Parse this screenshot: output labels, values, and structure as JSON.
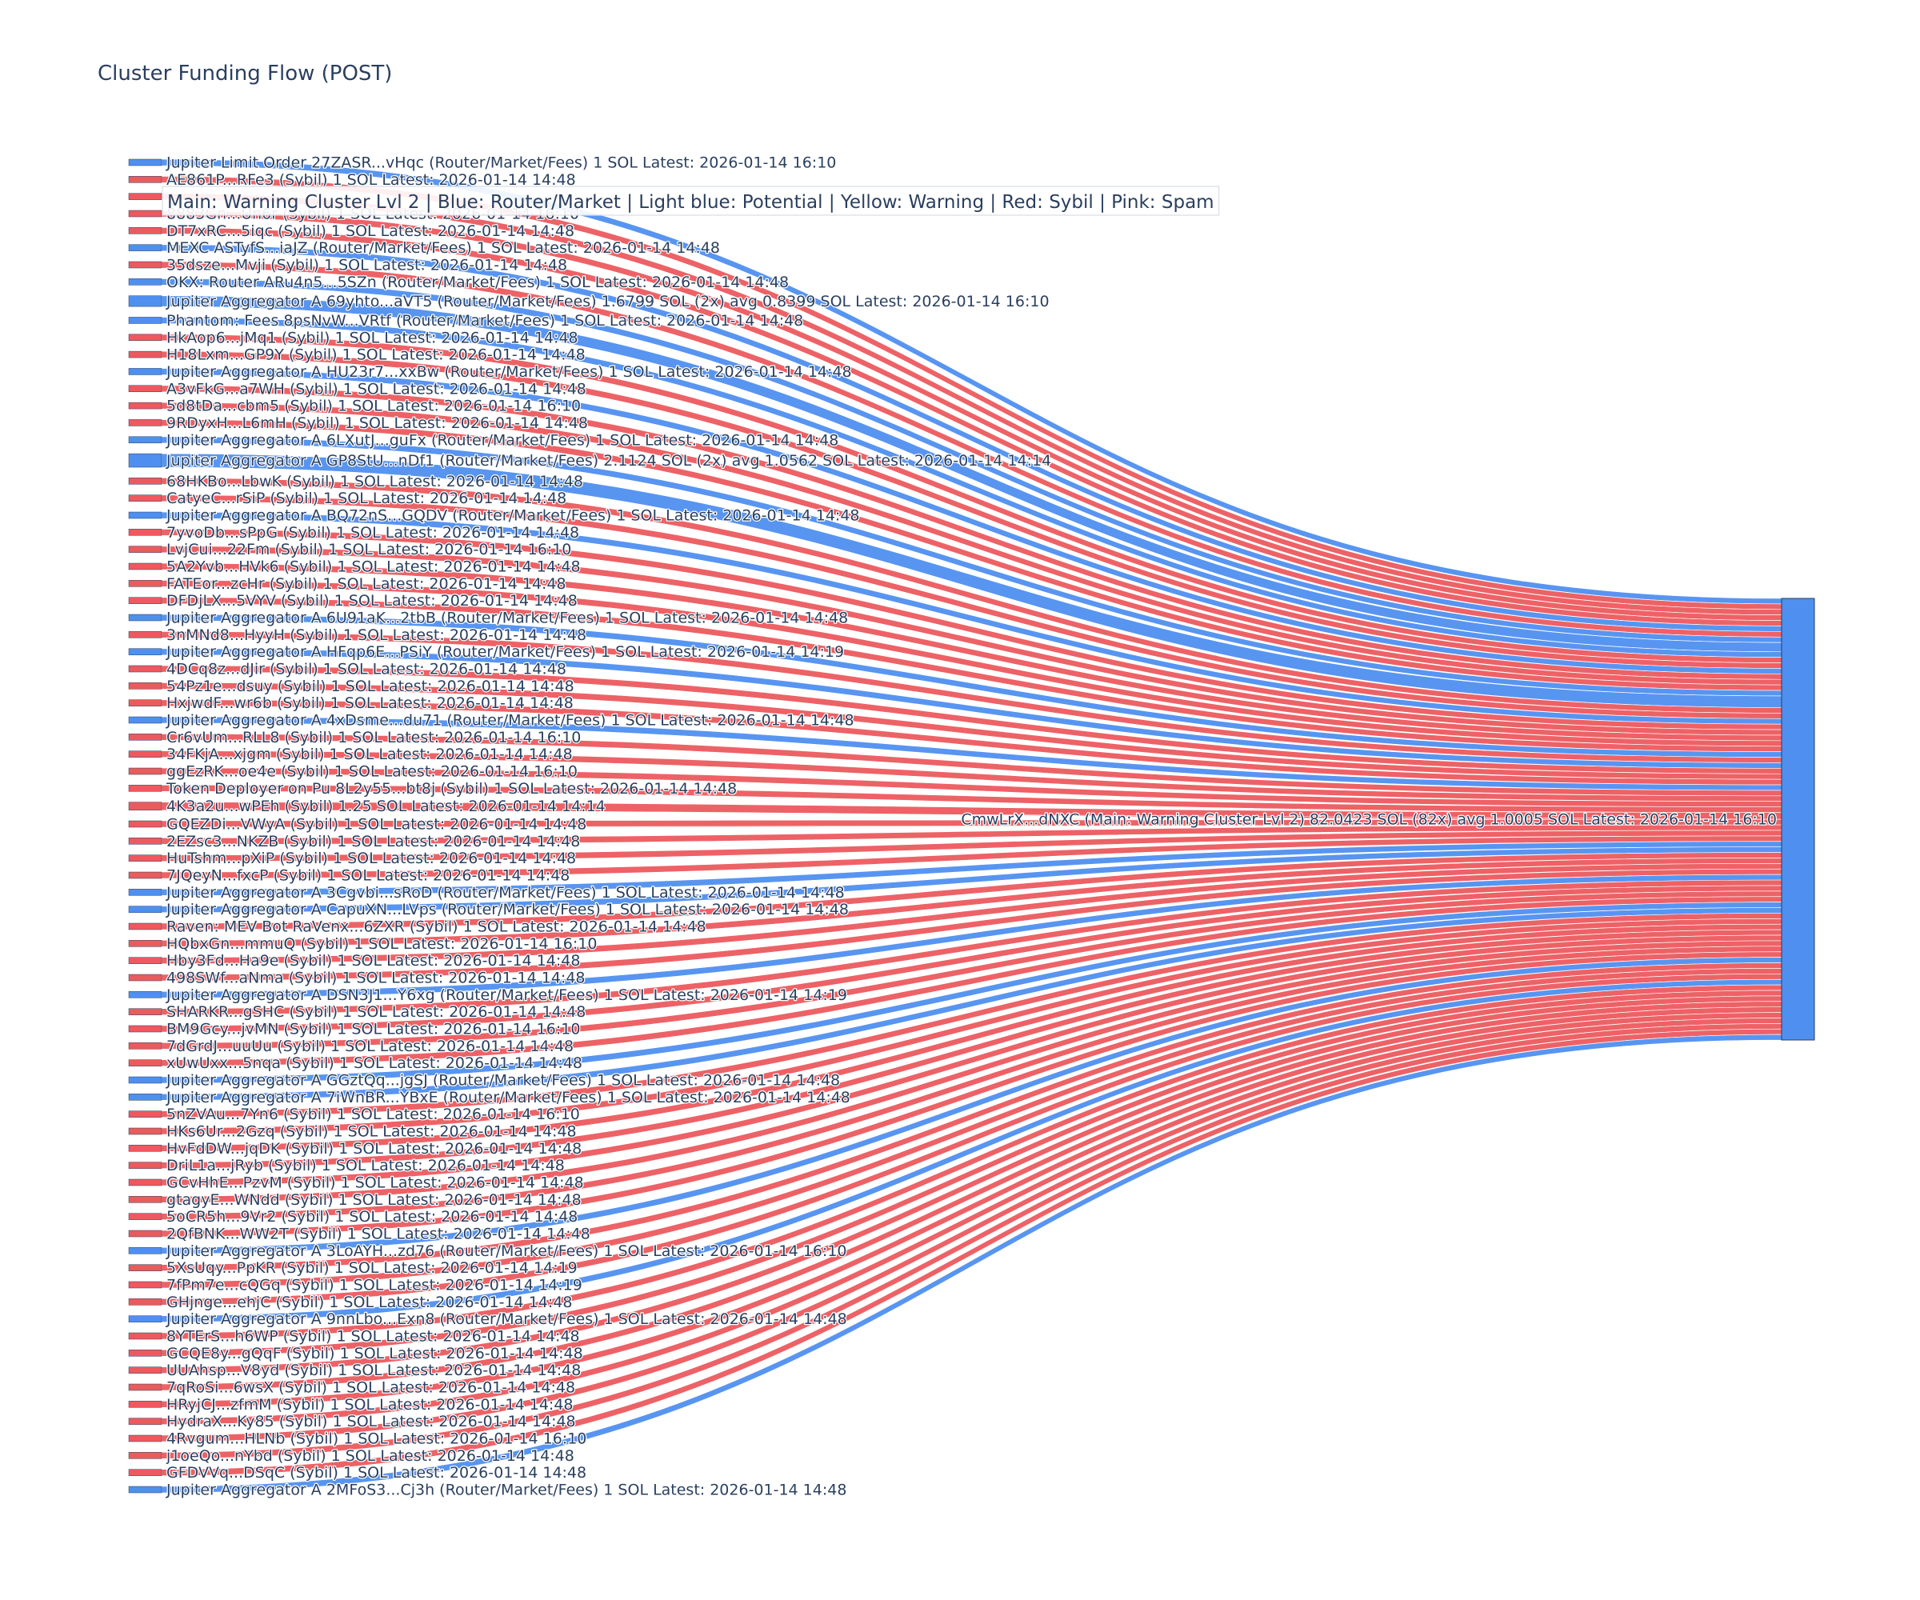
{
  "chart_data": {
    "type": "sankey",
    "title": "Cluster Funding Flow (POST)",
    "legend": "Main: Warning Cluster Lvl 2  |  Blue: Router/Market | Light blue: Potential | Yellow: Warning | Red: Sybil | Pink: Spam",
    "colors": {
      "router": "#4f8ff0",
      "sybil": "#ec5a5e",
      "main": "#4f8ff0",
      "main_border": "#2a3f5f",
      "text": "#2a3f5f"
    },
    "target": {
      "label": "CmwLrX...dNXC (Main: Warning Cluster Lvl 2) 82.0423 SOL (82x) avg 1.0005 SOL Latest: 2026-01-14 16:10",
      "value": 82.0423,
      "category": "main"
    },
    "sources": [
      {
        "label": "Jupiter Limit Order  27ZASR...vHqc (Router/Market/Fees) 1 SOL Latest: 2026-01-14 16:10",
        "value": 1,
        "category": "router"
      },
      {
        "label": "AE861P...RFe3 (Sybil) 1 SOL Latest: 2026-01-14 14:48",
        "value": 1,
        "category": "sybil"
      },
      {
        "label": "",
        "value": 1,
        "category": "sybil"
      },
      {
        "label": "8883Gn...Un6r (Sybil) 1 SOL Latest: 2026-01-14 16:10",
        "value": 1,
        "category": "sybil"
      },
      {
        "label": "DT7xRC...5iqc (Sybil) 1 SOL Latest: 2026-01-14 14:48",
        "value": 1,
        "category": "sybil"
      },
      {
        "label": "MEXC ASTyfS...iaJZ (Router/Market/Fees) 1 SOL Latest: 2026-01-14 14:48",
        "value": 1,
        "category": "router"
      },
      {
        "label": "35dsze...Mvji (Sybil) 1 SOL Latest: 2026-01-14 14:48",
        "value": 1,
        "category": "sybil"
      },
      {
        "label": "OKX: Router ARu4n5...5SZn (Router/Market/Fees) 1 SOL Latest: 2026-01-14 14:48",
        "value": 1,
        "category": "router"
      },
      {
        "label": "Jupiter Aggregator A 69yhto...aVT5 (Router/Market/Fees) 1.6799 SOL (2x) avg 0.8399 SOL Latest: 2026-01-14 16:10",
        "value": 1.6799,
        "category": "router"
      },
      {
        "label": "Phantom: Fees 8psNvW...VRtf (Router/Market/Fees) 1 SOL Latest: 2026-01-14 14:48",
        "value": 1,
        "category": "router"
      },
      {
        "label": "HkAop6...jMq1 (Sybil) 1 SOL Latest: 2026-01-14 14:48",
        "value": 1,
        "category": "sybil"
      },
      {
        "label": "H18Lxm...GP9Y (Sybil) 1 SOL Latest: 2026-01-14 14:48",
        "value": 1,
        "category": "sybil"
      },
      {
        "label": "Jupiter Aggregator A HU23r7...xxBw (Router/Market/Fees) 1 SOL Latest: 2026-01-14 14:48",
        "value": 1,
        "category": "router"
      },
      {
        "label": "A3vFkG...a7WH (Sybil) 1 SOL Latest: 2026-01-14 14:48",
        "value": 1,
        "category": "sybil"
      },
      {
        "label": "5d8tDa...cbm5 (Sybil) 1 SOL Latest: 2026-01-14 16:10",
        "value": 1,
        "category": "sybil"
      },
      {
        "label": "9RDyxH...L6mH (Sybil) 1 SOL Latest: 2026-01-14 14:48",
        "value": 1,
        "category": "sybil"
      },
      {
        "label": "Jupiter Aggregator A 6LXutJ...guFx (Router/Market/Fees) 1 SOL Latest: 2026-01-14 14:48",
        "value": 1,
        "category": "router"
      },
      {
        "label": "Jupiter Aggregator A GP8StU...nDf1 (Router/Market/Fees) 2.1124 SOL (2x) avg 1.0562 SOL Latest: 2026-01-14 14:14",
        "value": 2.1124,
        "category": "router"
      },
      {
        "label": "68HKBo...LbwK (Sybil) 1 SOL Latest: 2026-01-14 14:48",
        "value": 1,
        "category": "sybil"
      },
      {
        "label": "CatyeC...rSiP (Sybil) 1 SOL Latest: 2026-01-14 14:48",
        "value": 1,
        "category": "sybil"
      },
      {
        "label": "Jupiter Aggregator A BQ72nS...GQDV (Router/Market/Fees) 1 SOL Latest: 2026-01-14 14:48",
        "value": 1,
        "category": "router"
      },
      {
        "label": "7yvoDb...sPpG (Sybil) 1 SOL Latest: 2026-01-14 14:48",
        "value": 1,
        "category": "sybil"
      },
      {
        "label": "LvjCui...22Fm (Sybil) 1 SOL Latest: 2026-01-14 16:10",
        "value": 1,
        "category": "sybil"
      },
      {
        "label": "5A2Yvb...HVk6 (Sybil) 1 SOL Latest: 2026-01-14 14:48",
        "value": 1,
        "category": "sybil"
      },
      {
        "label": "FATEor...zcHr (Sybil) 1 SOL Latest: 2026-01-14 14:48",
        "value": 1,
        "category": "sybil"
      },
      {
        "label": "DFDjLX...5VYV (Sybil) 1 SOL Latest: 2026-01-14 14:48",
        "value": 1,
        "category": "sybil"
      },
      {
        "label": "Jupiter Aggregator A 6U91aK...2tbB (Router/Market/Fees) 1 SOL Latest: 2026-01-14 14:48",
        "value": 1,
        "category": "router"
      },
      {
        "label": "3nMNd8...HyyH (Sybil) 1 SOL Latest: 2026-01-14 14:48",
        "value": 1,
        "category": "sybil"
      },
      {
        "label": "Jupiter Aggregator A HFqp6E...PSiY (Router/Market/Fees) 1 SOL Latest: 2026-01-14 14:19",
        "value": 1,
        "category": "router"
      },
      {
        "label": "4DCq8z...dJir (Sybil) 1 SOL Latest: 2026-01-14 14:48",
        "value": 1,
        "category": "sybil"
      },
      {
        "label": "54Pz1e...dsuy (Sybil) 1 SOL Latest: 2026-01-14 14:48",
        "value": 1,
        "category": "sybil"
      },
      {
        "label": "HxjwdF...wr6b (Sybil) 1 SOL Latest: 2026-01-14 14:48",
        "value": 1,
        "category": "sybil"
      },
      {
        "label": "Jupiter Aggregator A 4xDsme...du71 (Router/Market/Fees) 1 SOL Latest: 2026-01-14 14:48",
        "value": 1,
        "category": "router"
      },
      {
        "label": "Cr6vUm...RLL8 (Sybil) 1 SOL Latest: 2026-01-14 16:10",
        "value": 1,
        "category": "sybil"
      },
      {
        "label": "34FKjA...xjgm (Sybil) 1 SOL Latest: 2026-01-14 14:48",
        "value": 1,
        "category": "sybil"
      },
      {
        "label": "ggEzRK...oe4e (Sybil) 1 SOL Latest: 2026-01-14 16:10",
        "value": 1,
        "category": "sybil"
      },
      {
        "label": "Token Deployer on Pu 8L2y55...bt8j (Sybil) 1 SOL Latest: 2026-01-14 14:48",
        "value": 1,
        "category": "sybil"
      },
      {
        "label": "4K3a2u...wPEh (Sybil) 1.25 SOL Latest: 2026-01-14 14:14",
        "value": 1.25,
        "category": "sybil"
      },
      {
        "label": "GQEZDi...VWyA (Sybil) 1 SOL Latest: 2026-01-14 14:48",
        "value": 1,
        "category": "sybil"
      },
      {
        "label": "2EZsc3...NKZB (Sybil) 1 SOL Latest: 2026-01-14 14:48",
        "value": 1,
        "category": "sybil"
      },
      {
        "label": "HuTshm...pXiP (Sybil) 1 SOL Latest: 2026-01-14 14:48",
        "value": 1,
        "category": "sybil"
      },
      {
        "label": "7JQeyN...fxcP (Sybil) 1 SOL Latest: 2026-01-14 14:48",
        "value": 1,
        "category": "sybil"
      },
      {
        "label": "Jupiter Aggregator A 3Cgvbi...sRoD (Router/Market/Fees) 1 SOL Latest: 2026-01-14 14:48",
        "value": 1,
        "category": "router"
      },
      {
        "label": "Jupiter Aggregator A CapuXN...LVps (Router/Market/Fees) 1 SOL Latest: 2026-01-14 14:48",
        "value": 1,
        "category": "router"
      },
      {
        "label": "Raven: MEV Bot RaVenx...6ZXR (Sybil) 1 SOL Latest: 2026-01-14 14:48",
        "value": 1,
        "category": "sybil"
      },
      {
        "label": "HQbxGn...mmuQ (Sybil) 1 SOL Latest: 2026-01-14 16:10",
        "value": 1,
        "category": "sybil"
      },
      {
        "label": "Hby3Fd...Ha9e (Sybil) 1 SOL Latest: 2026-01-14 14:48",
        "value": 1,
        "category": "sybil"
      },
      {
        "label": "498SWf...aNma (Sybil) 1 SOL Latest: 2026-01-14 14:48",
        "value": 1,
        "category": "sybil"
      },
      {
        "label": "Jupiter Aggregator A DSN3J1...Y6xg (Router/Market/Fees) 1 SOL Latest: 2026-01-14 14:19",
        "value": 1,
        "category": "router"
      },
      {
        "label": "SHARKR...gSHC (Sybil) 1 SOL Latest: 2026-01-14 14:48",
        "value": 1,
        "category": "sybil"
      },
      {
        "label": "BM9Gcy...jvMN (Sybil) 1 SOL Latest: 2026-01-14 16:10",
        "value": 1,
        "category": "sybil"
      },
      {
        "label": "7dGrdJ...uuUu (Sybil) 1 SOL Latest: 2026-01-14 14:48",
        "value": 1,
        "category": "sybil"
      },
      {
        "label": "xUwUxx...5nqa (Sybil) 1 SOL Latest: 2026-01-14 14:48",
        "value": 1,
        "category": "sybil"
      },
      {
        "label": "Jupiter Aggregator A GGztQq...jgSJ (Router/Market/Fees) 1 SOL Latest: 2026-01-14 14:48",
        "value": 1,
        "category": "router"
      },
      {
        "label": "Jupiter Aggregator A 7iWnBR...YBxE (Router/Market/Fees) 1 SOL Latest: 2026-01-14 14:48",
        "value": 1,
        "category": "router"
      },
      {
        "label": "5nZVAu...7Yn6 (Sybil) 1 SOL Latest: 2026-01-14 16:10",
        "value": 1,
        "category": "sybil"
      },
      {
        "label": "HKs6Ur...2Gzq (Sybil) 1 SOL Latest: 2026-01-14 14:48",
        "value": 1,
        "category": "sybil"
      },
      {
        "label": "HvFdDW...jqDK (Sybil) 1 SOL Latest: 2026-01-14 14:48",
        "value": 1,
        "category": "sybil"
      },
      {
        "label": "DriL1a...jRyb (Sybil) 1 SOL Latest: 2026-01-14 14:48",
        "value": 1,
        "category": "sybil"
      },
      {
        "label": "GCvHhE...PzvM (Sybil) 1 SOL Latest: 2026-01-14 14:48",
        "value": 1,
        "category": "sybil"
      },
      {
        "label": "gtagyE...WNdd (Sybil) 1 SOL Latest: 2026-01-14 14:48",
        "value": 1,
        "category": "sybil"
      },
      {
        "label": "5oCR5h...9Vr2 (Sybil) 1 SOL Latest: 2026-01-14 14:48",
        "value": 1,
        "category": "sybil"
      },
      {
        "label": "2QfBNK...WW2T (Sybil) 1 SOL Latest: 2026-01-14 14:48",
        "value": 1,
        "category": "sybil"
      },
      {
        "label": "Jupiter Aggregator A 3LoAYH...zd76 (Router/Market/Fees) 1 SOL Latest: 2026-01-14 16:10",
        "value": 1,
        "category": "router"
      },
      {
        "label": "5XsUqy...PpKR (Sybil) 1 SOL Latest: 2026-01-14 14:19",
        "value": 1,
        "category": "sybil"
      },
      {
        "label": "7fPm7e...cQGq (Sybil) 1 SOL Latest: 2026-01-14 14:19",
        "value": 1,
        "category": "sybil"
      },
      {
        "label": "GHjnge...ehjC (Sybil) 1 SOL Latest: 2026-01-14 14:48",
        "value": 1,
        "category": "sybil"
      },
      {
        "label": "Jupiter Aggregator A 9nnLbo...Exn8 (Router/Market/Fees) 1 SOL Latest: 2026-01-14 14:48",
        "value": 1,
        "category": "router"
      },
      {
        "label": "8YTErS...h6WP (Sybil) 1 SOL Latest: 2026-01-14 14:48",
        "value": 1,
        "category": "sybil"
      },
      {
        "label": "GCQE8y...gQqF (Sybil) 1 SOL Latest: 2026-01-14 14:48",
        "value": 1,
        "category": "sybil"
      },
      {
        "label": "UUAhsp...V8yd (Sybil) 1 SOL Latest: 2026-01-14 14:48",
        "value": 1,
        "category": "sybil"
      },
      {
        "label": "7qRoSi...6wsX (Sybil) 1 SOL Latest: 2026-01-14 14:48",
        "value": 1,
        "category": "sybil"
      },
      {
        "label": "HRyjCJ...zfmM (Sybil) 1 SOL Latest: 2026-01-14 14:48",
        "value": 1,
        "category": "sybil"
      },
      {
        "label": "HydraX...Ky85 (Sybil) 1 SOL Latest: 2026-01-14 14:48",
        "value": 1,
        "category": "sybil"
      },
      {
        "label": "4Rvgum...HLNb (Sybil) 1 SOL Latest: 2026-01-14 16:10",
        "value": 1,
        "category": "sybil"
      },
      {
        "label": "j1oeQo...nYbd (Sybil) 1 SOL Latest: 2026-01-14 14:48",
        "value": 1,
        "category": "sybil"
      },
      {
        "label": "GFDVVq...DSqC (Sybil) 1 SOL Latest: 2026-01-14 14:48",
        "value": 1,
        "category": "sybil"
      },
      {
        "label": "Jupiter Aggregator A 2MFoS3...Cj3h (Router/Market/Fees) 1 SOL Latest: 2026-01-14 14:48",
        "value": 1,
        "category": "router"
      }
    ]
  }
}
